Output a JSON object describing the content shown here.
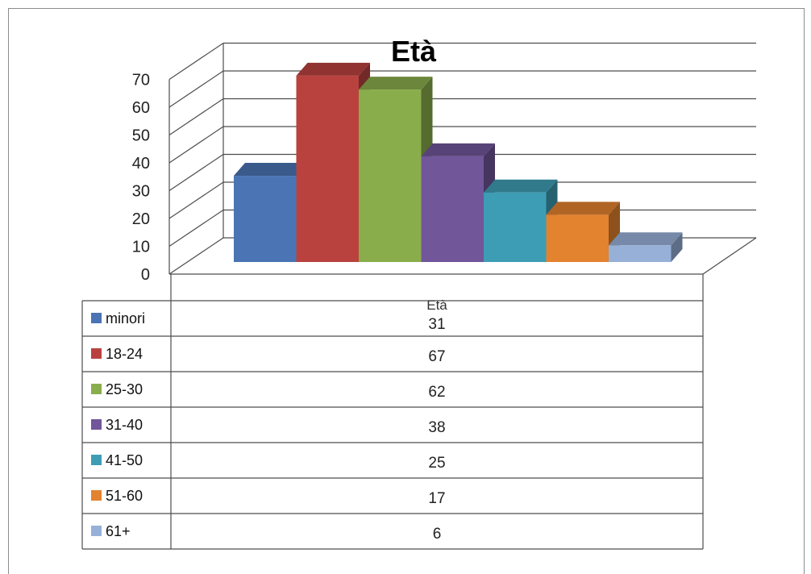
{
  "chart_data": {
    "type": "bar",
    "title": "Età",
    "categories": [
      "Età"
    ],
    "series": [
      {
        "name": "minori",
        "values": [
          31
        ],
        "color": "#4a74b4"
      },
      {
        "name": "18-24",
        "values": [
          67
        ],
        "color": "#b9423f"
      },
      {
        "name": "25-30",
        "values": [
          62
        ],
        "color": "#8aad4c"
      },
      {
        "name": "31-40",
        "values": [
          38
        ],
        "color": "#71569a"
      },
      {
        "name": "41-50",
        "values": [
          25
        ],
        "color": "#3d9db4"
      },
      {
        "name": "51-60",
        "values": [
          17
        ],
        "color": "#e3822f"
      },
      {
        "name": "61+",
        "values": [
          6
        ],
        "color": "#97b0d8"
      }
    ],
    "ylim": [
      0,
      70
    ],
    "yticks": [
      0,
      10,
      20,
      30,
      40,
      50,
      60,
      70
    ],
    "grid": true,
    "style": "3d-clustered-column-with-data-table"
  }
}
